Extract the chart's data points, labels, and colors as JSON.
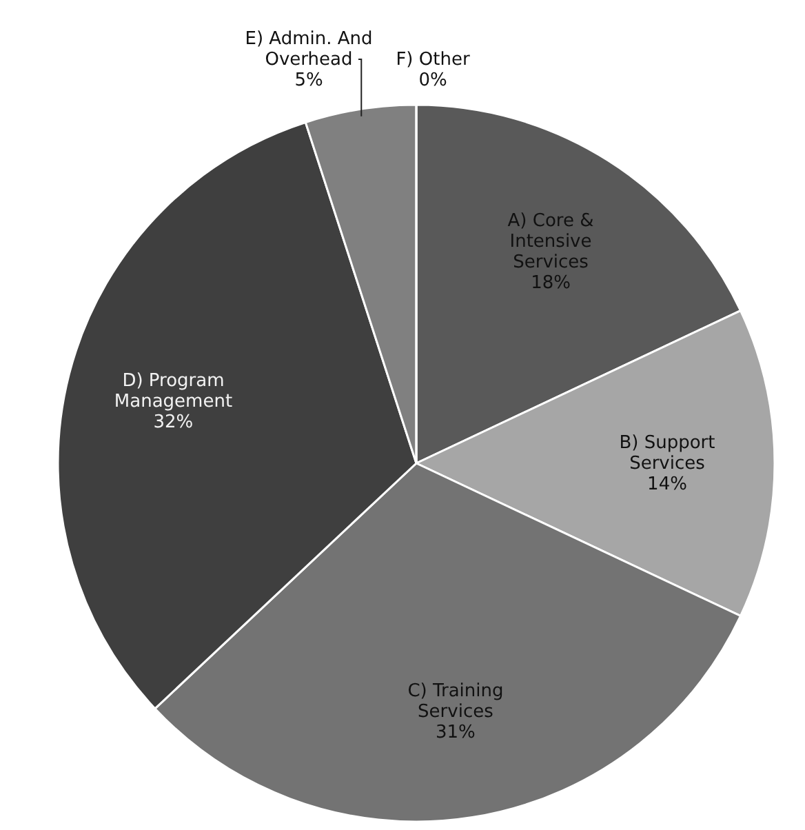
{
  "chart_data": {
    "type": "pie",
    "categories": [
      "A) Core & Intensive Services",
      "B) Support Services",
      "C) Training Services",
      "D) Program Management",
      "E) Admin. And Overhead",
      "F) Other"
    ],
    "values": [
      18,
      14,
      31,
      32,
      5,
      0
    ],
    "colors": [
      "#595959",
      "#a6a6a6",
      "#737373",
      "#3f3f3f",
      "#808080",
      "#d9d9d9"
    ],
    "value_labels": [
      "18%",
      "14%",
      "31%",
      "32%",
      "5%",
      "0%"
    ]
  }
}
